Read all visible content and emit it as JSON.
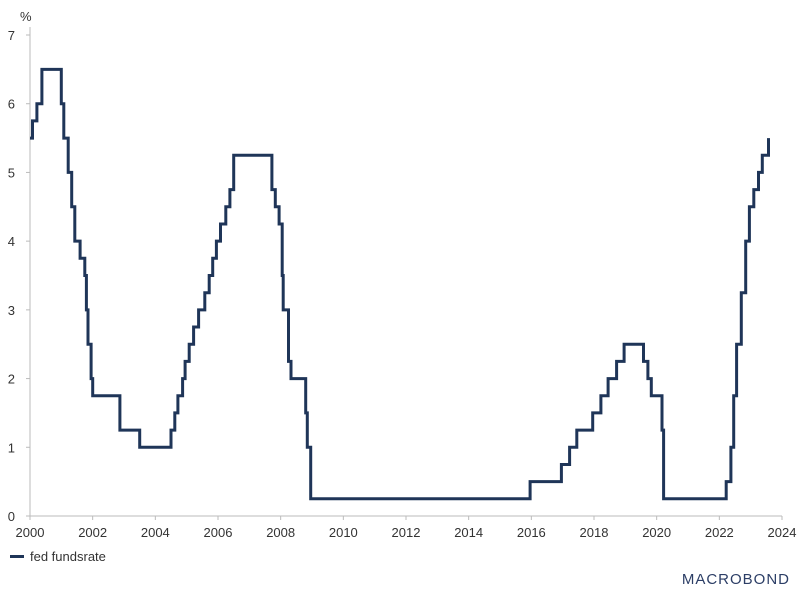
{
  "chart_data": {
    "type": "line",
    "unit_label": "%",
    "xlim": [
      2000,
      2024
    ],
    "ylim": [
      0,
      7
    ],
    "x_ticks": [
      2000,
      2002,
      2004,
      2006,
      2008,
      2010,
      2012,
      2014,
      2016,
      2018,
      2020,
      2022,
      2024
    ],
    "y_ticks": [
      0,
      1,
      2,
      3,
      4,
      5,
      6,
      7
    ],
    "step": true,
    "series": [
      {
        "name": "fed fundsrate",
        "color": "#1f3558",
        "points": [
          [
            2000.0,
            5.5
          ],
          [
            2000.08,
            5.75
          ],
          [
            2000.22,
            6.0
          ],
          [
            2000.38,
            6.5
          ],
          [
            2001.0,
            6.0
          ],
          [
            2001.08,
            5.5
          ],
          [
            2001.22,
            5.0
          ],
          [
            2001.33,
            4.5
          ],
          [
            2001.43,
            4.0
          ],
          [
            2001.6,
            3.75
          ],
          [
            2001.75,
            3.5
          ],
          [
            2001.8,
            3.0
          ],
          [
            2001.85,
            2.5
          ],
          [
            2001.95,
            2.0
          ],
          [
            2002.0,
            1.75
          ],
          [
            2002.87,
            1.25
          ],
          [
            2003.5,
            1.0
          ],
          [
            2004.5,
            1.25
          ],
          [
            2004.62,
            1.5
          ],
          [
            2004.72,
            1.75
          ],
          [
            2004.87,
            2.0
          ],
          [
            2004.95,
            2.25
          ],
          [
            2005.08,
            2.5
          ],
          [
            2005.22,
            2.75
          ],
          [
            2005.38,
            3.0
          ],
          [
            2005.58,
            3.25
          ],
          [
            2005.72,
            3.5
          ],
          [
            2005.83,
            3.75
          ],
          [
            2005.95,
            4.0
          ],
          [
            2006.08,
            4.25
          ],
          [
            2006.25,
            4.5
          ],
          [
            2006.38,
            4.75
          ],
          [
            2006.5,
            5.25
          ],
          [
            2007.72,
            4.75
          ],
          [
            2007.83,
            4.5
          ],
          [
            2007.95,
            4.25
          ],
          [
            2008.05,
            3.5
          ],
          [
            2008.08,
            3.0
          ],
          [
            2008.25,
            2.25
          ],
          [
            2008.33,
            2.0
          ],
          [
            2008.8,
            1.5
          ],
          [
            2008.85,
            1.0
          ],
          [
            2008.96,
            0.25
          ],
          [
            2015.96,
            0.5
          ],
          [
            2016.96,
            0.75
          ],
          [
            2017.22,
            1.0
          ],
          [
            2017.45,
            1.25
          ],
          [
            2017.96,
            1.5
          ],
          [
            2018.22,
            1.75
          ],
          [
            2018.45,
            2.0
          ],
          [
            2018.72,
            2.25
          ],
          [
            2018.96,
            2.5
          ],
          [
            2019.58,
            2.25
          ],
          [
            2019.72,
            2.0
          ],
          [
            2019.83,
            1.75
          ],
          [
            2020.17,
            1.25
          ],
          [
            2020.22,
            0.25
          ],
          [
            2022.22,
            0.5
          ],
          [
            2022.37,
            1.0
          ],
          [
            2022.46,
            1.75
          ],
          [
            2022.55,
            2.5
          ],
          [
            2022.7,
            3.25
          ],
          [
            2022.84,
            4.0
          ],
          [
            2022.96,
            4.5
          ],
          [
            2023.1,
            4.75
          ],
          [
            2023.25,
            5.0
          ],
          [
            2023.37,
            5.25
          ],
          [
            2023.57,
            5.5
          ]
        ]
      }
    ]
  },
  "legend": {
    "label": "fed fundsrate"
  },
  "brand": {
    "text": "MACROBOND"
  }
}
